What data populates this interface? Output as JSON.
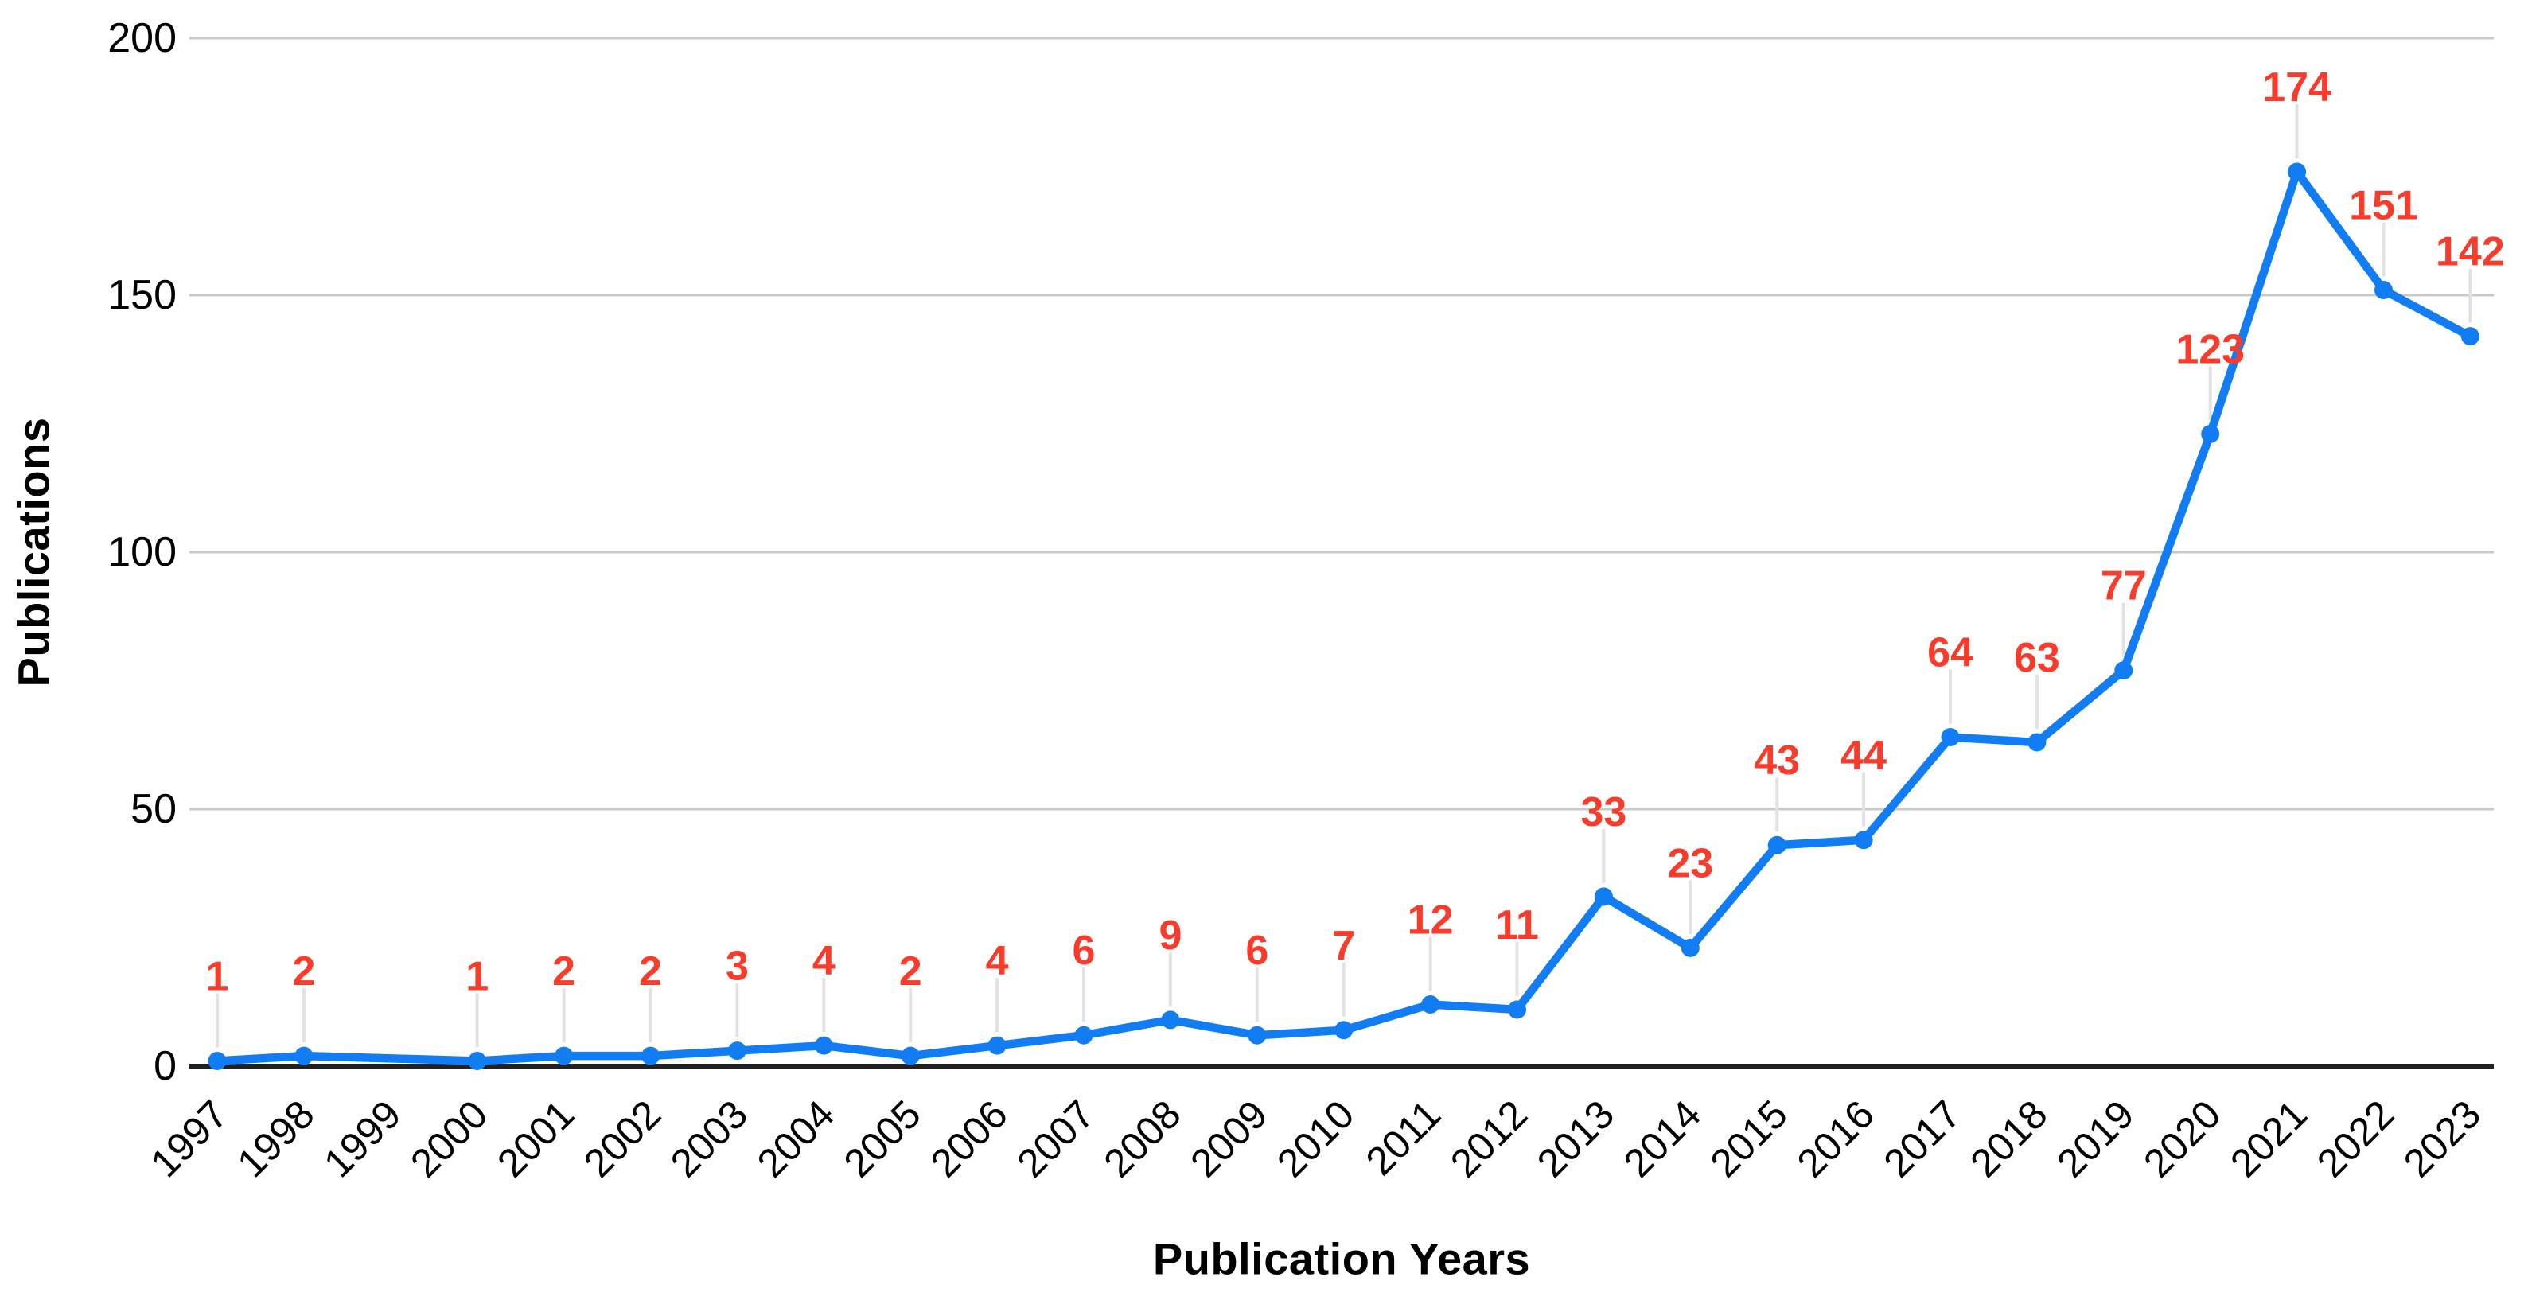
{
  "chart_data": {
    "type": "line",
    "title": "",
    "xlabel": "Publication Years",
    "ylabel": "Publications",
    "categories": [
      "1997",
      "1998",
      "1999",
      "2000",
      "2001",
      "2002",
      "2003",
      "2004",
      "2005",
      "2006",
      "2007",
      "2008",
      "2009",
      "2010",
      "2011",
      "2012",
      "2013",
      "2014",
      "2015",
      "2016",
      "2017",
      "2018",
      "2019",
      "2020",
      "2021",
      "2022",
      "2023"
    ],
    "values": [
      1,
      2,
      null,
      1,
      2,
      2,
      3,
      4,
      2,
      4,
      6,
      9,
      6,
      7,
      12,
      11,
      33,
      23,
      43,
      44,
      64,
      63,
      77,
      123,
      174,
      151,
      142
    ],
    "ylim": [
      0,
      200
    ],
    "yticks": [
      0,
      50,
      100,
      150,
      200
    ],
    "grid": "horizontal",
    "legend": "none",
    "series_name": "Publications",
    "colors": {
      "line": "#127df2",
      "point": "#127df2",
      "value_label": "#f93b2b",
      "gridline": "#c9c9c9",
      "axis_baseline": "#212121",
      "leader_line": "#e2e2e2",
      "tick_label": "#000000",
      "axis_title": "#000000",
      "background": "#ffffff"
    }
  }
}
